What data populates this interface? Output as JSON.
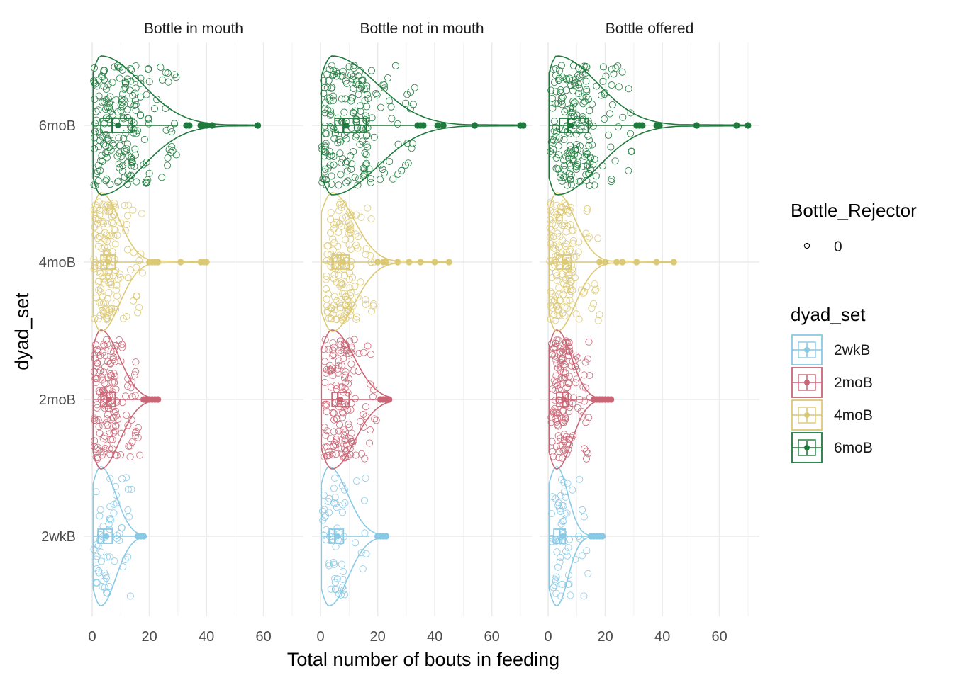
{
  "chart_data": {
    "type": "violin",
    "xlabel": "Total number of bouts in feeding",
    "ylabel": "dyad_set",
    "xlim": [
      -3,
      74
    ],
    "x_ticks": [
      0,
      20,
      40,
      60
    ],
    "x_minor_ticks": [
      10,
      30,
      50,
      70
    ],
    "facets": [
      "Bottle in mouth",
      "Bottle not in mouth",
      "Bottle offered"
    ],
    "categories": [
      "2wkB",
      "2moB",
      "4moB",
      "6moB"
    ],
    "grid": true,
    "legend_position": "right",
    "colors": {
      "2wkB": "#88c9e6",
      "2moB": "#c96676",
      "4moB": "#dcc975",
      "6moB": "#1e7a3c"
    },
    "legend": {
      "shape_title": "Bottle_Rejector",
      "shape_items": [
        "0"
      ],
      "color_title": "dyad_set",
      "color_items": [
        "2wkB",
        "2moB",
        "4moB",
        "6moB"
      ]
    },
    "series": [
      {
        "facet": "Bottle in mouth",
        "group": "2wkB",
        "q1": 2,
        "median": 4,
        "mean": 5,
        "q3": 7,
        "whisker_max": 15,
        "outliers": [
          16,
          17,
          18
        ],
        "mode": 3,
        "max": 18,
        "n_points": 60
      },
      {
        "facet": "Bottle in mouth",
        "group": "2moB",
        "q1": 3,
        "median": 5,
        "mean": 6,
        "q3": 8,
        "whisker_max": 17,
        "outliers": [
          18,
          19,
          20,
          21,
          22,
          23
        ],
        "mode": 3,
        "max": 23,
        "n_points": 150
      },
      {
        "facet": "Bottle in mouth",
        "group": "4moB",
        "q1": 3,
        "median": 5,
        "mean": 5.5,
        "q3": 8,
        "whisker_max": 18,
        "outliers": [
          20,
          21,
          22,
          23,
          31,
          38,
          39,
          40
        ],
        "mode": 3,
        "max": 40,
        "n_points": 150
      },
      {
        "facet": "Bottle in mouth",
        "group": "6moB",
        "q1": 3,
        "median": 7,
        "mean": 9,
        "q3": 14,
        "whisker_max": 30,
        "outliers": [
          33,
          34,
          38,
          39,
          40,
          42,
          58
        ],
        "mode": 3,
        "max": 58,
        "n_points": 200
      },
      {
        "facet": "Bottle not in mouth",
        "group": "2wkB",
        "q1": 3,
        "median": 5,
        "mean": 6,
        "q3": 8,
        "whisker_max": 17,
        "outliers": [
          20,
          21,
          22,
          23
        ],
        "mode": 3,
        "max": 23,
        "n_points": 60
      },
      {
        "facet": "Bottle not in mouth",
        "group": "2moB",
        "q1": 4,
        "median": 6,
        "mean": 7,
        "q3": 10,
        "whisker_max": 20,
        "outliers": [
          21,
          22,
          23,
          24
        ],
        "mode": 4,
        "max": 24,
        "n_points": 150
      },
      {
        "facet": "Bottle not in mouth",
        "group": "4moB",
        "q1": 4,
        "median": 7,
        "mean": 8,
        "q3": 10,
        "whisker_max": 19,
        "outliers": [
          20,
          22,
          23,
          27,
          31,
          35,
          40,
          45
        ],
        "mode": 4,
        "max": 45,
        "n_points": 150
      },
      {
        "facet": "Bottle not in mouth",
        "group": "6moB",
        "q1": 5,
        "median": 8,
        "mean": 9,
        "q3": 16,
        "whisker_max": 33,
        "outliers": [
          34,
          35,
          36,
          41,
          43,
          54,
          70,
          71
        ],
        "mode": 4,
        "max": 71,
        "n_points": 200
      },
      {
        "facet": "Bottle offered",
        "group": "2wkB",
        "q1": 2,
        "median": 4,
        "mean": 5,
        "q3": 6,
        "whisker_max": 14,
        "outliers": [
          15,
          16,
          17,
          18,
          19
        ],
        "mode": 3,
        "max": 19,
        "n_points": 60
      },
      {
        "facet": "Bottle offered",
        "group": "2moB",
        "q1": 3,
        "median": 5,
        "mean": 5.5,
        "q3": 7,
        "whisker_max": 15,
        "outliers": [
          16,
          17,
          18,
          19,
          20,
          21,
          22
        ],
        "mode": 3,
        "max": 22,
        "n_points": 150
      },
      {
        "facet": "Bottle offered",
        "group": "4moB",
        "q1": 3,
        "median": 5,
        "mean": 6,
        "q3": 8,
        "whisker_max": 18,
        "outliers": [
          18,
          20,
          24,
          26,
          31,
          38,
          44
        ],
        "mode": 3,
        "max": 44,
        "n_points": 150
      },
      {
        "facet": "Bottle offered",
        "group": "6moB",
        "q1": 4,
        "median": 7,
        "mean": 8,
        "q3": 14,
        "whisker_max": 30,
        "outliers": [
          31,
          32,
          33,
          38,
          39,
          52,
          66,
          70
        ],
        "mode": 3,
        "max": 70,
        "n_points": 200
      }
    ]
  }
}
